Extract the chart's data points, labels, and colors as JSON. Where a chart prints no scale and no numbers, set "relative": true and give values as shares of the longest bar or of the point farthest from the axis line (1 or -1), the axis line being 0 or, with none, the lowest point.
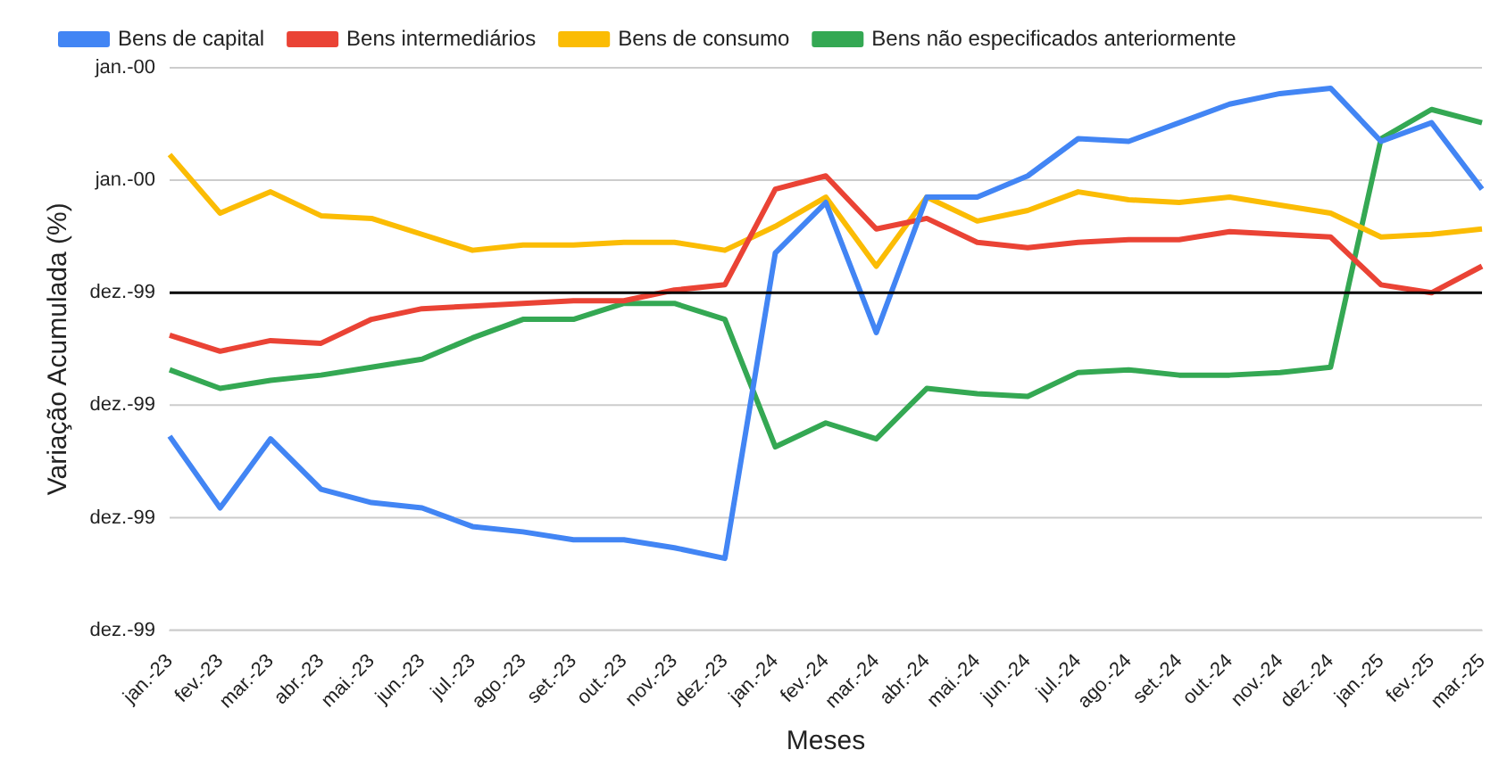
{
  "chart_data": {
    "type": "line",
    "xlabel": "Meses",
    "ylabel": "Variação Acumulada (%)",
    "relative": true,
    "categories": [
      "jan.-23",
      "fev.-23",
      "mar.-23",
      "abr.-23",
      "mai.-23",
      "jun.-23",
      "jul.-23",
      "ago.-23",
      "set.-23",
      "out.-23",
      "nov.-23",
      "dez.-23",
      "jan.-24",
      "fev.-24",
      "mar.-24",
      "abr.-24",
      "mai.-24",
      "jun.-24",
      "jul.-24",
      "ago.-24",
      "set.-24",
      "out.-24",
      "nov.-24",
      "dez.-24",
      "jan.-25",
      "fev.-25",
      "mar.-25"
    ],
    "series": [
      {
        "name": "Bens de capital",
        "color": "#4285f4",
        "values": [
          -0.54,
          -0.81,
          -0.55,
          -0.74,
          -0.79,
          -0.81,
          -0.88,
          -0.9,
          -0.93,
          -0.93,
          -0.96,
          -1,
          0.15,
          0.34,
          -0.15,
          0.36,
          0.36,
          0.44,
          0.58,
          0.57,
          0.64,
          0.71,
          0.75,
          0.77,
          0.57,
          0.64,
          0.39
        ]
      },
      {
        "name": "Bens intermediários",
        "color": "#ea4335",
        "values": [
          -0.16,
          -0.22,
          -0.18,
          -0.19,
          -0.1,
          -0.06,
          -0.05,
          -0.04,
          -0.03,
          -0.03,
          0.01,
          0.03,
          0.39,
          0.44,
          0.24,
          0.28,
          0.19,
          0.17,
          0.19,
          0.2,
          0.2,
          0.23,
          0.22,
          0.21,
          0.03,
          0,
          0.1
        ]
      },
      {
        "name": "Bens de consumo",
        "color": "#fbbc04",
        "values": [
          0.52,
          0.3,
          0.38,
          0.29,
          0.28,
          0.22,
          0.16,
          0.18,
          0.18,
          0.19,
          0.19,
          0.16,
          0.25,
          0.36,
          0.1,
          0.36,
          0.27,
          0.31,
          0.38,
          0.35,
          0.34,
          0.36,
          0.33,
          0.3,
          0.21,
          0.22,
          0.24
        ]
      },
      {
        "name": "Bens não especificados anteriormente",
        "color": "#34a853",
        "values": [
          -0.29,
          -0.36,
          -0.33,
          -0.31,
          -0.28,
          -0.25,
          -0.17,
          -0.1,
          -0.1,
          -0.04,
          -0.04,
          -0.1,
          -0.58,
          -0.49,
          -0.55,
          -0.36,
          -0.38,
          -0.39,
          -0.3,
          -0.29,
          -0.31,
          -0.31,
          -0.3,
          -0.28,
          0.58,
          0.69,
          0.64
        ]
      }
    ],
    "annotations": [
      "jan.-00",
      "jan.-00",
      "dez.-99",
      "dez.-99",
      "dez.-99",
      "dez.-99"
    ],
    "ref_lines": [
      {
        "axis": "y",
        "value": 0,
        "color": "#000000"
      }
    ],
    "grid": "y",
    "legend": "top",
    "marker": "none",
    "line_style": "solid"
  }
}
